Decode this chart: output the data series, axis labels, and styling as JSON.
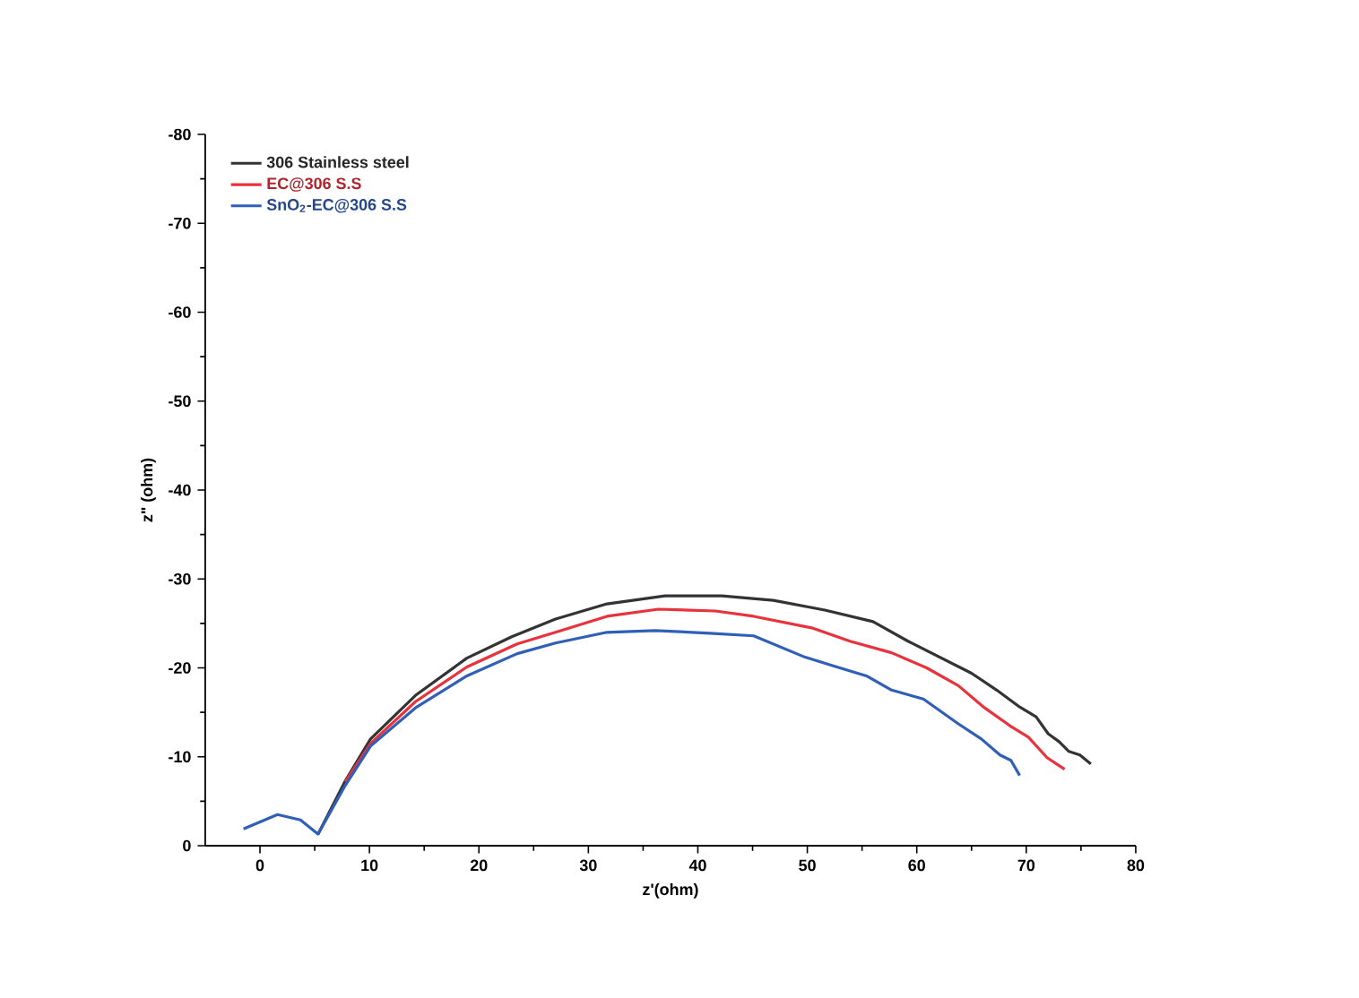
{
  "chart_data": {
    "type": "line",
    "xlabel": "z'(ohm)",
    "ylabel": "z\" (ohm)",
    "xlim": [
      -5,
      80
    ],
    "ylim": [
      0,
      -80
    ],
    "xticks": [
      0,
      10,
      20,
      30,
      40,
      50,
      60,
      70,
      80
    ],
    "yticks": [
      -80,
      -70,
      -60,
      -50,
      -40,
      -30,
      -20,
      -10,
      0
    ],
    "legend": "top left",
    "grid": false,
    "marker": "none",
    "line_style": "solid",
    "series": [
      {
        "name": "306 Stainless steel",
        "color": "#333333",
        "x": [
          5.3,
          7.8,
          10.1,
          14.2,
          18.9,
          23.0,
          27.0,
          31.7,
          37.0,
          42.2,
          46.9,
          51.6,
          56.0,
          59.2,
          62.1,
          65.0,
          67.3,
          69.4,
          70.9,
          72.0,
          73.0,
          73.9,
          74.9,
          75.9
        ],
        "values": [
          -1.3,
          -7.3,
          -12.0,
          -16.9,
          -21.1,
          -23.5,
          -25.5,
          -27.2,
          -28.1,
          -28.1,
          -27.6,
          -26.5,
          -25.2,
          -23.0,
          -21.2,
          -19.4,
          -17.5,
          -15.6,
          -14.5,
          -12.6,
          -11.7,
          -10.6,
          -10.2,
          -9.2
        ]
      },
      {
        "name": "EC@306 S.S",
        "color": "#e8323c",
        "x": [
          7.8,
          10.1,
          14.2,
          18.9,
          23.5,
          27.0,
          31.7,
          36.4,
          41.6,
          45.1,
          50.4,
          53.9,
          57.7,
          60.9,
          63.8,
          66.2,
          68.5,
          70.2,
          71.9,
          73.5
        ],
        "values": [
          -7.2,
          -11.5,
          -16.2,
          -20.1,
          -22.7,
          -24.0,
          -25.8,
          -26.6,
          -26.4,
          -25.8,
          -24.5,
          -23.0,
          -21.7,
          -20.0,
          -18.0,
          -15.5,
          -13.5,
          -12.2,
          -9.9,
          -8.6
        ]
      },
      {
        "name": "SnO$_{2}$-EC@306 S.S",
        "color": "#2f5fb8",
        "x": [
          -1.5,
          1.6,
          3.7,
          5.3,
          7.8,
          10.1,
          14.2,
          18.9,
          23.5,
          27.0,
          31.7,
          36.1,
          41.1,
          45.1,
          49.8,
          52.7,
          55.4,
          57.7,
          60.6,
          63.8,
          65.9,
          67.6,
          68.6,
          69.4
        ],
        "values": [
          -1.9,
          -3.5,
          -2.9,
          -1.3,
          -6.8,
          -11.2,
          -15.5,
          -19.1,
          -21.6,
          -22.8,
          -24.0,
          -24.2,
          -23.9,
          -23.6,
          -21.2,
          -20.1,
          -19.1,
          -17.5,
          -16.5,
          -13.7,
          -12.0,
          -10.2,
          -9.6,
          -7.9
        ]
      }
    ]
  }
}
